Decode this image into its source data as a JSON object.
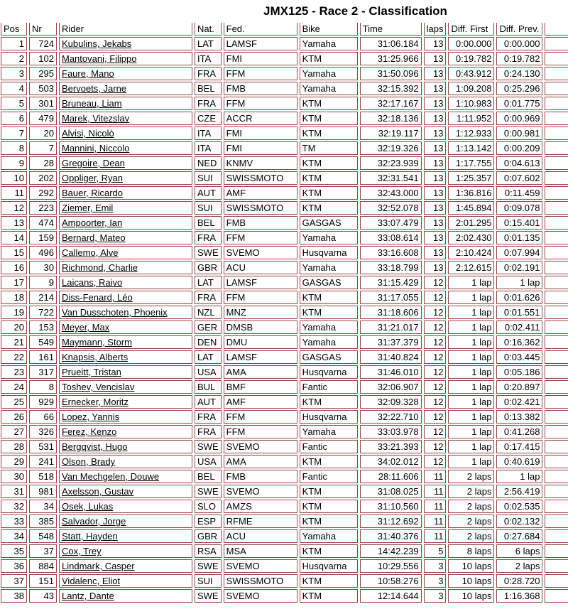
{
  "title": "JMX125 - Race 2 - Classification",
  "colors": {
    "border": "#9a4343",
    "text": "#000000",
    "background": "#ffffff"
  },
  "table": {
    "columns": [
      "Pos",
      "Nr",
      "Rider",
      "Nat.",
      "Fed.",
      "Bike",
      "Time",
      "laps",
      "Diff. First",
      "Diff. Prev."
    ],
    "rows": [
      [
        "1",
        "724",
        "Kubulins, Jekabs",
        "LAT",
        "LAMSF",
        "Yamaha",
        "31:06.184",
        "13",
        "0:00.000",
        "0:00.000"
      ],
      [
        "2",
        "102",
        "Mantovani, Filippo",
        "ITA",
        "FMI",
        "KTM",
        "31:25.966",
        "13",
        "0:19.782",
        "0:19.782"
      ],
      [
        "3",
        "295",
        "Faure, Mano",
        "FRA",
        "FFM",
        "Yamaha",
        "31:50.096",
        "13",
        "0:43.912",
        "0:24.130"
      ],
      [
        "4",
        "503",
        "Bervoets, Jarne",
        "BEL",
        "FMB",
        "Yamaha",
        "32:15.392",
        "13",
        "1:09.208",
        "0:25.296"
      ],
      [
        "5",
        "301",
        "Bruneau, Liam",
        "FRA",
        "FFM",
        "KTM",
        "32:17.167",
        "13",
        "1:10.983",
        "0:01.775"
      ],
      [
        "6",
        "479",
        "Marek, Vitezslav",
        "CZE",
        "ACCR",
        "KTM",
        "32:18.136",
        "13",
        "1:11.952",
        "0:00.969"
      ],
      [
        "7",
        "20",
        "Alvisi, Nicolò",
        "ITA",
        "FMI",
        "KTM",
        "32:19.117",
        "13",
        "1:12.933",
        "0:00.981"
      ],
      [
        "8",
        "7",
        "Mannini, Niccolo",
        "ITA",
        "FMI",
        "TM",
        "32:19.326",
        "13",
        "1:13.142",
        "0:00.209"
      ],
      [
        "9",
        "28",
        "Gregoire, Dean",
        "NED",
        "KNMV",
        "KTM",
        "32:23.939",
        "13",
        "1:17.755",
        "0:04.613"
      ],
      [
        "10",
        "202",
        "Oppliger, Ryan",
        "SUI",
        "SWISSMOTO",
        "KTM",
        "32:31.541",
        "13",
        "1:25.357",
        "0:07.602"
      ],
      [
        "11",
        "292",
        "Bauer, Ricardo",
        "AUT",
        "AMF",
        "KTM",
        "32:43.000",
        "13",
        "1:36.816",
        "0:11.459"
      ],
      [
        "12",
        "223",
        "Ziemer, Emil",
        "SUI",
        "SWISSMOTO",
        "KTM",
        "32:52.078",
        "13",
        "1:45.894",
        "0:09.078"
      ],
      [
        "13",
        "474",
        "Ampoorter, Ian",
        "BEL",
        "FMB",
        "GASGAS",
        "33:07.479",
        "13",
        "2:01.295",
        "0:15.401"
      ],
      [
        "14",
        "159",
        "Bernard, Mateo",
        "FRA",
        "FFM",
        "Yamaha",
        "33:08.614",
        "13",
        "2:02.430",
        "0:01.135"
      ],
      [
        "15",
        "496",
        "Callemo, Alve",
        "SWE",
        "SVEMO",
        "Husqvarna",
        "33:16.608",
        "13",
        "2:10.424",
        "0:07.994"
      ],
      [
        "16",
        "30",
        "Richmond, Charlie",
        "GBR",
        "ACU",
        "Yamaha",
        "33:18.799",
        "13",
        "2:12.615",
        "0:02.191"
      ],
      [
        "17",
        "9",
        "Laicans, Raivo",
        "LAT",
        "LAMSF",
        "GASGAS",
        "31:15.429",
        "12",
        "1 lap",
        "1 lap"
      ],
      [
        "18",
        "214",
        "Diss-Fenard, Léo",
        "FRA",
        "FFM",
        "KTM",
        "31:17.055",
        "12",
        "1 lap",
        "0:01.626"
      ],
      [
        "19",
        "722",
        "Van Dusschoten, Phoenix",
        "NZL",
        "MNZ",
        "KTM",
        "31:18.606",
        "12",
        "1 lap",
        "0:01.551"
      ],
      [
        "20",
        "153",
        "Meyer, Max",
        "GER",
        "DMSB",
        "Yamaha",
        "31:21.017",
        "12",
        "1 lap",
        "0:02.411"
      ],
      [
        "21",
        "549",
        "Maymann, Storm",
        "DEN",
        "DMU",
        "Yamaha",
        "31:37.379",
        "12",
        "1 lap",
        "0:16.362"
      ],
      [
        "22",
        "161",
        "Knapsis, Alberts",
        "LAT",
        "LAMSF",
        "GASGAS",
        "31:40.824",
        "12",
        "1 lap",
        "0:03.445"
      ],
      [
        "23",
        "317",
        "Prueitt, Tristan",
        "USA",
        "AMA",
        "Husqvarna",
        "31:46.010",
        "12",
        "1 lap",
        "0:05.186"
      ],
      [
        "24",
        "8",
        "Toshev, Vencislav",
        "BUL",
        "BMF",
        "Fantic",
        "32:06.907",
        "12",
        "1 lap",
        "0:20.897"
      ],
      [
        "25",
        "929",
        "Ernecker, Moritz",
        "AUT",
        "AMF",
        "KTM",
        "32:09.328",
        "12",
        "1 lap",
        "0:02.421"
      ],
      [
        "26",
        "66",
        "Lopez, Yannis",
        "FRA",
        "FFM",
        "Husqvarna",
        "32:22.710",
        "12",
        "1 lap",
        "0:13.382"
      ],
      [
        "27",
        "326",
        "Ferez, Kenzo",
        "FRA",
        "FFM",
        "Yamaha",
        "33:03.978",
        "12",
        "1 lap",
        "0:41.268"
      ],
      [
        "28",
        "531",
        "Bergqvist, Hugo",
        "SWE",
        "SVEMO",
        "Fantic",
        "33:21.393",
        "12",
        "1 lap",
        "0:17.415"
      ],
      [
        "29",
        "241",
        "Olson, Brady",
        "USA",
        "AMA",
        "KTM",
        "34:02.012",
        "12",
        "1 lap",
        "0:40.619"
      ],
      [
        "30",
        "518",
        "Van Mechgelen, Douwe",
        "BEL",
        "FMB",
        "Fantic",
        "28:11.606",
        "11",
        "2 laps",
        "1 lap"
      ],
      [
        "31",
        "981",
        "Axelsson, Gustav",
        "SWE",
        "SVEMO",
        "KTM",
        "31:08.025",
        "11",
        "2 laps",
        "2:56.419"
      ],
      [
        "32",
        "34",
        "Osek, Lukas",
        "SLO",
        "AMZS",
        "KTM",
        "31:10.560",
        "11",
        "2 laps",
        "0:02.535"
      ],
      [
        "33",
        "385",
        "Salvador, Jorge",
        "ESP",
        "RFME",
        "KTM",
        "31:12.692",
        "11",
        "2 laps",
        "0:02.132"
      ],
      [
        "34",
        "548",
        "Statt, Hayden",
        "GBR",
        "ACU",
        "Yamaha",
        "31:40.376",
        "11",
        "2 laps",
        "0:27.684"
      ],
      [
        "35",
        "37",
        "Cox, Trey",
        "RSA",
        "MSA",
        "KTM",
        "14:42.239",
        "5",
        "8 laps",
        "6 laps"
      ],
      [
        "36",
        "884",
        "Lindmark, Casper",
        "SWE",
        "SVEMO",
        "Husqvarna",
        "10:29.556",
        "3",
        "10 laps",
        "2 laps"
      ],
      [
        "37",
        "151",
        "Vidalenc, Eliot",
        "SUI",
        "SWISSMOTO",
        "KTM",
        "10:58.276",
        "3",
        "10 laps",
        "0:28.720"
      ],
      [
        "38",
        "43",
        "Lantz, Dante",
        "SWE",
        "SVEMO",
        "KTM",
        "12:14.644",
        "3",
        "10 laps",
        "1:16.368"
      ]
    ]
  }
}
